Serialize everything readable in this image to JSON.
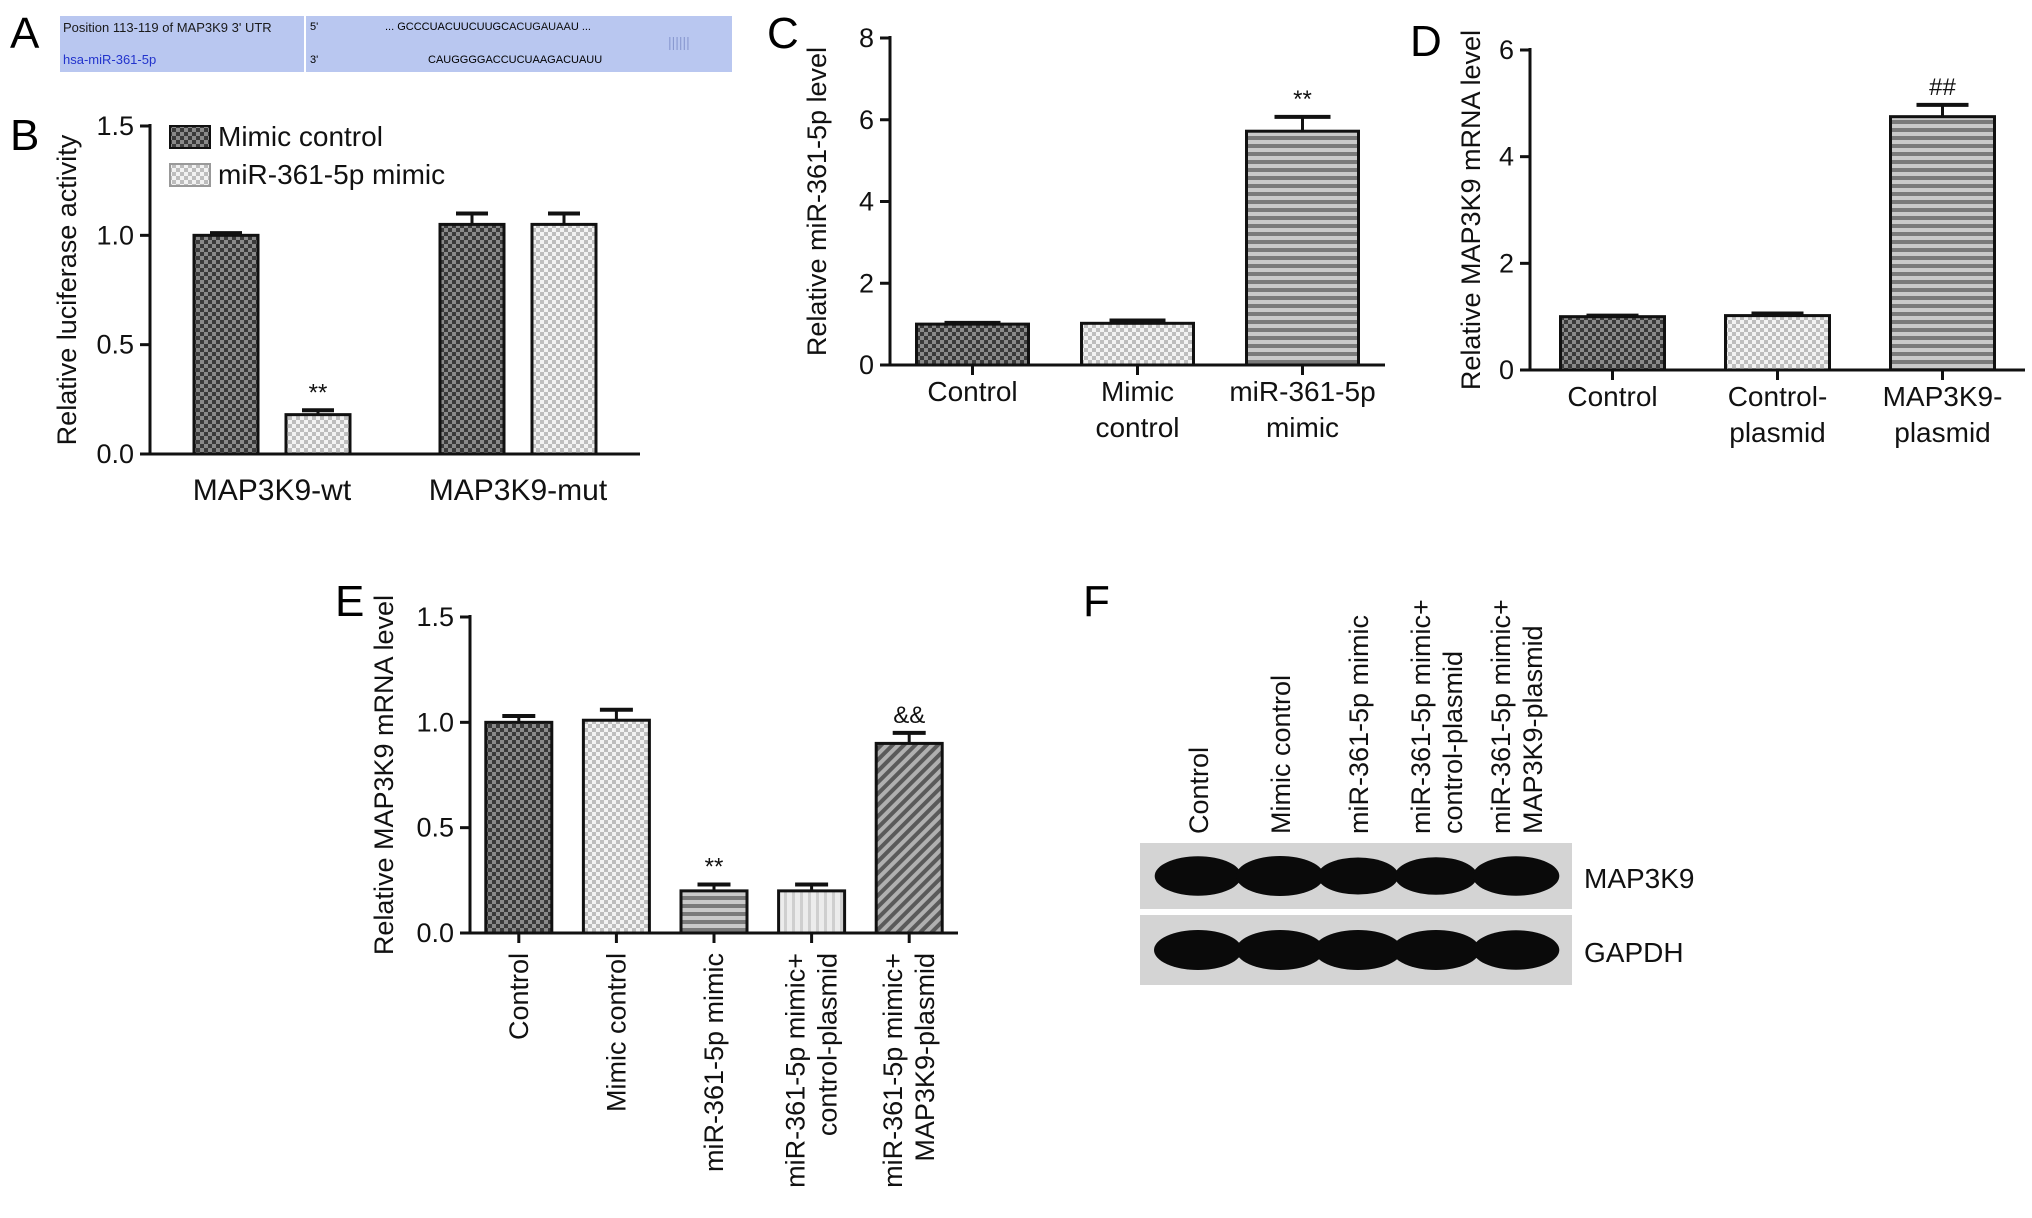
{
  "panels": {
    "A": {
      "letter": "A",
      "row1_label": "Position 113-119 of MAP3K9 3' UTR",
      "row1_prime": "5'",
      "row1_seq_prefix": "... GCCCUACUUCUUGC",
      "row1_seq_site": "ACUGAUAA",
      "row1_seq_suffix": "U ...",
      "row2_label": "hsa-miR-361-5p",
      "row2_prime": "3'",
      "row2_seq_prefix": "CAUGGGGACCUCUA",
      "row2_seq_site": "AGACUAU",
      "row2_seq_suffix": "U",
      "pairing": "||||||"
    },
    "B": {
      "letter": "B"
    },
    "C": {
      "letter": "C"
    },
    "D": {
      "letter": "D"
    },
    "E": {
      "letter": "E"
    },
    "F": {
      "letter": "F",
      "lane_labels": [
        [
          "Control"
        ],
        [
          "Mimic control"
        ],
        [
          "miR-361-5p mimic"
        ],
        [
          "miR-361-5p mimic+",
          "control-plasmid"
        ],
        [
          "miR-361-5p mimic+",
          "MAP3K9-plasmid"
        ]
      ],
      "band_labels": [
        "MAP3K9",
        "GAPDH"
      ],
      "band_intensity": {
        "MAP3K9": [
          0.95,
          1.0,
          0.75,
          0.8,
          0.95
        ],
        "GAPDH": [
          1.0,
          1.0,
          1.0,
          1.0,
          0.95
        ]
      }
    }
  },
  "chart_data": [
    {
      "id": "B",
      "type": "bar",
      "categories": [
        "MAP3K9-wt",
        "MAP3K9-mut"
      ],
      "series": [
        {
          "name": "Mimic control",
          "values": [
            1.0,
            1.05
          ],
          "errors": [
            0.01,
            0.05
          ],
          "pattern": "dark-check"
        },
        {
          "name": "miR-361-5p mimic",
          "values": [
            0.18,
            1.05
          ],
          "errors": [
            0.02,
            0.05
          ],
          "pattern": "light-check"
        }
      ],
      "annotations": [
        {
          "category": 0,
          "series": 1,
          "text": "**"
        }
      ],
      "ylabel": "Relative luciferase activity",
      "ylim": [
        0,
        1.5
      ],
      "yticks": [
        "0.0",
        "0.5",
        "1.0",
        "1.5"
      ],
      "legend": "top-left"
    },
    {
      "id": "C",
      "type": "bar",
      "categories": [
        [
          "Control"
        ],
        [
          "Mimic",
          "control"
        ],
        [
          "miR-361-5p",
          "mimic"
        ]
      ],
      "values": [
        1.0,
        1.02,
        5.72
      ],
      "errors": [
        0.03,
        0.07,
        0.35
      ],
      "patterns": [
        "dark-check",
        "light-check",
        "stripes"
      ],
      "annotations": [
        {
          "index": 2,
          "text": "**"
        }
      ],
      "ylabel": "Relative miR-361-5p level",
      "ylim": [
        0,
        8
      ],
      "yticks": [
        "0",
        "2",
        "4",
        "6",
        "8"
      ]
    },
    {
      "id": "D",
      "type": "bar",
      "categories": [
        [
          "Control"
        ],
        [
          "Control-",
          "plasmid"
        ],
        [
          "MAP3K9-",
          "plasmid"
        ]
      ],
      "values": [
        1.0,
        1.02,
        4.75
      ],
      "errors": [
        0.02,
        0.04,
        0.22
      ],
      "patterns": [
        "dark-check",
        "light-check",
        "stripes"
      ],
      "annotations": [
        {
          "index": 2,
          "text": "##"
        }
      ],
      "ylabel": "Relative MAP3K9 mRNA level",
      "ylim": [
        0,
        6
      ],
      "yticks": [
        "0",
        "2",
        "4",
        "6"
      ]
    },
    {
      "id": "E",
      "type": "bar",
      "categories": [
        [
          "Control"
        ],
        [
          "Mimic control"
        ],
        [
          "miR-361-5p mimic"
        ],
        [
          "miR-361-5p mimic+",
          "control-plasmid"
        ],
        [
          "miR-361-5p mimic+",
          "MAP3K9-plasmid"
        ]
      ],
      "values": [
        1.0,
        1.01,
        0.2,
        0.2,
        0.9
      ],
      "errors": [
        0.03,
        0.05,
        0.03,
        0.03,
        0.05
      ],
      "patterns": [
        "dark-check",
        "light-check",
        "stripes",
        "light-vert",
        "diag"
      ],
      "annotations": [
        {
          "index": 2,
          "text": "**"
        },
        {
          "index": 4,
          "text": "&&"
        }
      ],
      "ylabel": "Relative MAP3K9 mRNA level",
      "ylim": [
        0,
        1.5
      ],
      "yticks": [
        "0.0",
        "0.5",
        "1.0",
        "1.5"
      ]
    }
  ]
}
